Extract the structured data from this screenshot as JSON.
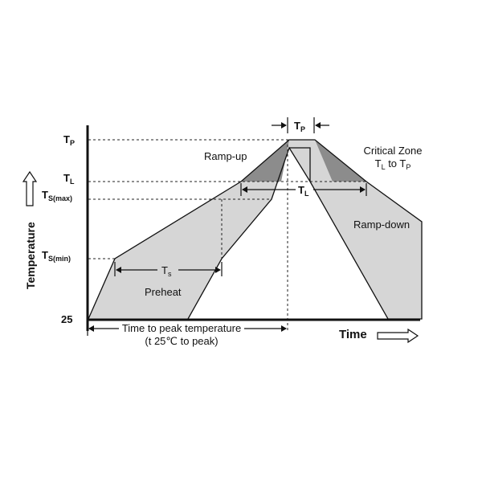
{
  "y_labels": {
    "tp_main": "T",
    "tp_sub": "P",
    "tl_main": "T",
    "tl_sub": "L",
    "tsmax_main": "T",
    "tsmax_sub": "S(max)",
    "tsmin_main": "T",
    "tsmin_sub": "S(min)",
    "t25": "25"
  },
  "axis": {
    "y_title": "Temperature",
    "x_title": "Time"
  },
  "zones": {
    "ramp_up": "Ramp-up",
    "ramp_down": "Ramp-down",
    "preheat": "Preheat",
    "critical_title": "Critical Zone",
    "critical_range_t1": "T",
    "critical_range_s1": "L",
    "critical_range_to": " to ",
    "critical_range_t2": "T",
    "critical_range_s2": "P"
  },
  "intervals": {
    "tp_main": "T",
    "tp_sub": "P",
    "tl_main": "T",
    "tl_sub": "L",
    "ts_main": "T",
    "ts_sub": "s"
  },
  "time_to_peak": {
    "line1": "Time to peak temperature",
    "line2": "(t 25℃ to peak)"
  },
  "colors": {
    "light_fill": "#d6d6d6",
    "dark_fill": "#8c8c8c",
    "ink": "#111111"
  }
}
